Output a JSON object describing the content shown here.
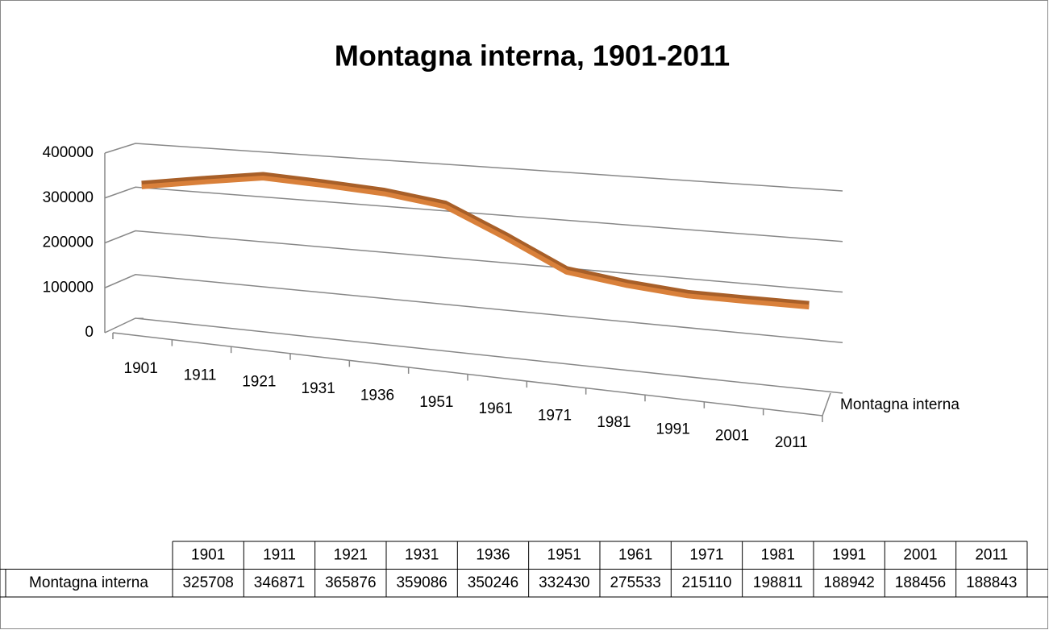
{
  "chart_data": {
    "type": "line",
    "title": "Montagna interna, 1901-2011",
    "categories": [
      "1901",
      "1911",
      "1921",
      "1931",
      "1936",
      "1951",
      "1961",
      "1971",
      "1981",
      "1991",
      "2001",
      "2011"
    ],
    "series": [
      {
        "name": "Montagna interna",
        "color": "#d9803a",
        "values": [
          325708,
          346871,
          365876,
          359086,
          350246,
          332430,
          275533,
          215110,
          198811,
          188942,
          188456,
          188843
        ]
      }
    ],
    "ylim": [
      0,
      400000
    ],
    "yticks": [
      0,
      100000,
      200000,
      300000,
      400000
    ],
    "grid": true
  }
}
